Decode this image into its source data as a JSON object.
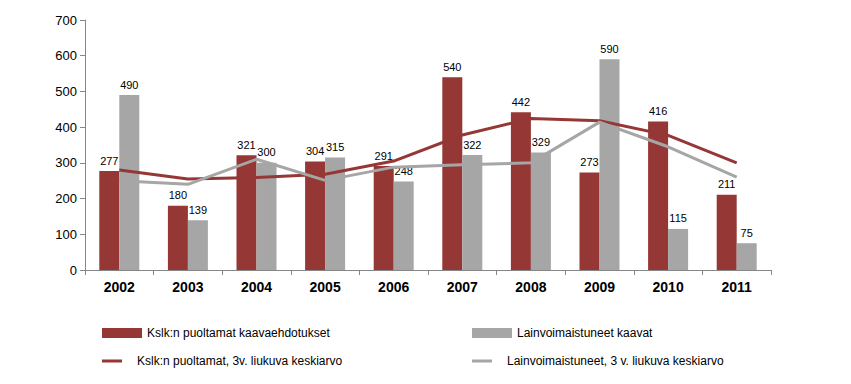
{
  "chart_data": {
    "type": "bar",
    "categories": [
      "2002",
      "2003",
      "2004",
      "2005",
      "2006",
      "2007",
      "2008",
      "2009",
      "2010",
      "2011"
    ],
    "series": [
      {
        "name": "Kslk:n puoltamat kaavaehdotukset",
        "type": "bar",
        "color": "#953735",
        "values": [
          277,
          180,
          321,
          304,
          291,
          540,
          442,
          273,
          416,
          211
        ]
      },
      {
        "name": "Lainvoimaistuneet kaavat",
        "type": "bar",
        "color": "#a6a6a6",
        "values": [
          490,
          139,
          300,
          315,
          248,
          322,
          329,
          590,
          115,
          75
        ]
      },
      {
        "name": "Kslk:n puoltamat, 3v. liukuva keskiarvo",
        "type": "line",
        "color": "#953735",
        "line_style": "solid",
        "values": [
          280,
          255,
          259,
          268,
          305,
          378,
          424,
          418,
          377,
          300
        ]
      },
      {
        "name": "Lainvoimaistuneet, 3 v. liukuva keskiarvo",
        "type": "line",
        "color": "#a6a6a6",
        "line_style": "solid",
        "values": [
          250,
          240,
          310,
          251,
          288,
          295,
          300,
          414,
          345,
          260
        ]
      }
    ],
    "ylim": [
      0,
      700
    ],
    "yticks": [
      0,
      100,
      200,
      300,
      400,
      500,
      600,
      700
    ],
    "grid": false,
    "legend": "bottom",
    "data_labels": true
  }
}
